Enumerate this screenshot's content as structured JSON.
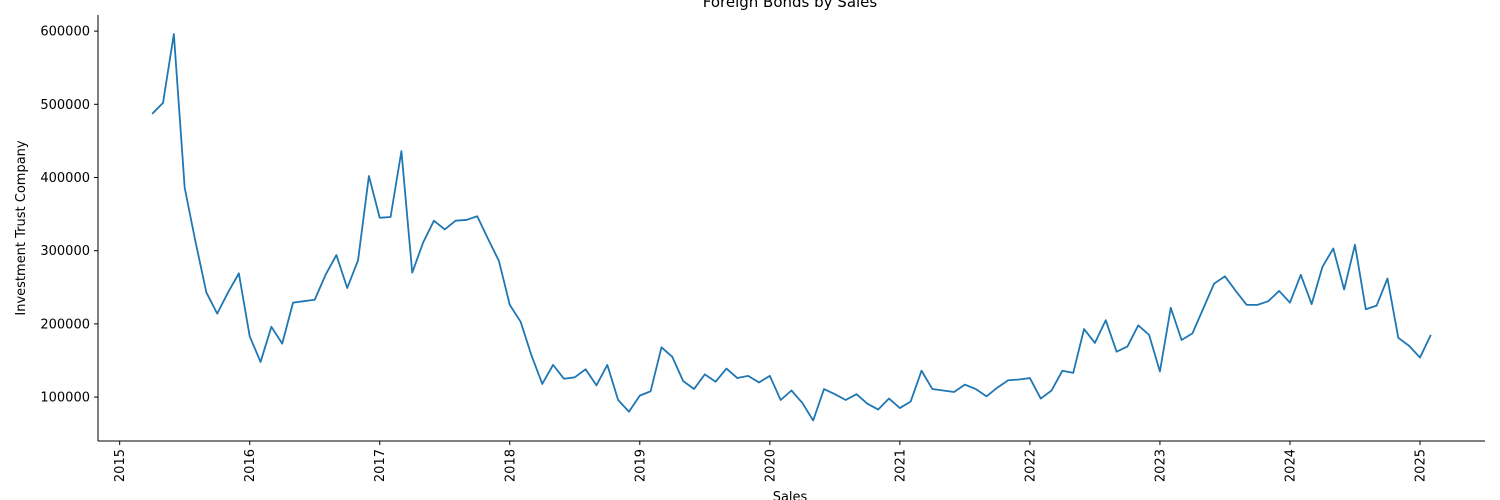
{
  "chart_data": {
    "type": "line",
    "title": "Foreign Bonds by Sales",
    "xlabel": "Sales",
    "ylabel": "Investment Trust Company",
    "x_ticks": [
      "2015",
      "2016",
      "2017",
      "2018",
      "2019",
      "2020",
      "2021",
      "2022",
      "2023",
      "2024",
      "2025"
    ],
    "y_ticks": [
      "100000",
      "200000",
      "300000",
      "400000",
      "500000",
      "600000"
    ],
    "ylim": [
      40000,
      622000
    ],
    "xlim": [
      "2014-11",
      "2025-07"
    ],
    "grid": false,
    "color": "#1f77b4",
    "series": [
      {
        "x": [
          "2015-04",
          "2015-05",
          "2015-06",
          "2015-07",
          "2015-08",
          "2015-09",
          "2015-10",
          "2015-11",
          "2015-12",
          "2016-01",
          "2016-02",
          "2016-03",
          "2016-04",
          "2016-05",
          "2016-06",
          "2016-07",
          "2016-08",
          "2016-09",
          "2016-10",
          "2016-11",
          "2016-12",
          "2017-01",
          "2017-02",
          "2017-03",
          "2017-04",
          "2017-05",
          "2017-06",
          "2017-07",
          "2017-08",
          "2017-09",
          "2017-10",
          "2017-11",
          "2017-12",
          "2018-01",
          "2018-02",
          "2018-03",
          "2018-04",
          "2018-05",
          "2018-06",
          "2018-07",
          "2018-08",
          "2018-09",
          "2018-10",
          "2018-11",
          "2018-12",
          "2019-01",
          "2019-02",
          "2019-03",
          "2019-04",
          "2019-05",
          "2019-06",
          "2019-07",
          "2019-08",
          "2019-09",
          "2019-10",
          "2019-11",
          "2019-12",
          "2020-01",
          "2020-02",
          "2020-03",
          "2020-04",
          "2020-05",
          "2020-06",
          "2020-07",
          "2020-08",
          "2020-09",
          "2020-10",
          "2020-11",
          "2020-12",
          "2021-01",
          "2021-02",
          "2021-03",
          "2021-04",
          "2021-05",
          "2021-06",
          "2021-07",
          "2021-08",
          "2021-09",
          "2021-10",
          "2021-11",
          "2021-12",
          "2022-01",
          "2022-02",
          "2022-03",
          "2022-04",
          "2022-05",
          "2022-06",
          "2022-07",
          "2022-08",
          "2022-09",
          "2022-10",
          "2022-11",
          "2022-12",
          "2023-01",
          "2023-02",
          "2023-03",
          "2023-04",
          "2023-05",
          "2023-06",
          "2023-07",
          "2023-08",
          "2023-09",
          "2023-10",
          "2023-11",
          "2023-12",
          "2024-01",
          "2024-02",
          "2024-03",
          "2024-04",
          "2024-05",
          "2024-06",
          "2024-07",
          "2024-08",
          "2024-09",
          "2024-10",
          "2024-11",
          "2024-12",
          "2025-01",
          "2025-02"
        ],
        "values": [
          487000,
          502000,
          596000,
          386000,
          312000,
          243000,
          214000,
          243000,
          269000,
          183000,
          148000,
          196000,
          173000,
          229000,
          231000,
          233000,
          267000,
          294000,
          249000,
          287000,
          402000,
          345000,
          346000,
          436000,
          270000,
          311000,
          341000,
          329000,
          341000,
          342000,
          347000,
          316000,
          286000,
          226000,
          203000,
          157000,
          118000,
          144000,
          125000,
          127000,
          138000,
          116000,
          144000,
          96000,
          80000,
          102000,
          108000,
          168000,
          155000,
          122000,
          111000,
          131000,
          121000,
          139000,
          126000,
          129000,
          120000,
          129000,
          96000,
          109000,
          92000,
          68000,
          111000,
          104000,
          96000,
          104000,
          91000,
          83000,
          98000,
          85000,
          94000,
          136000,
          111000,
          109000,
          107000,
          117000,
          111000,
          101000,
          113000,
          123000,
          124000,
          126000,
          98000,
          109000,
          136000,
          133000,
          193000,
          174000,
          205000,
          162000,
          169000,
          198000,
          185000,
          135000,
          222000,
          178000,
          187000,
          221000,
          255000,
          265000,
          245000,
          226000,
          226000,
          231000,
          245000,
          229000,
          267000,
          227000,
          278000,
          303000,
          247000,
          308000,
          220000,
          225000,
          262000,
          181000,
          170000,
          154000,
          185000
        ]
      }
    ]
  }
}
